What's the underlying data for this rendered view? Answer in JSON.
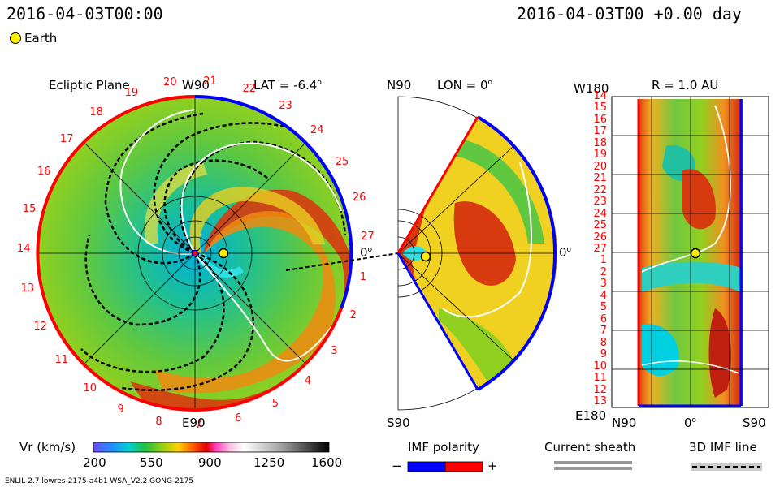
{
  "header": {
    "left_time": "2016-04-03T00:00",
    "right_time": "2016-04-03T00 +0.00 day"
  },
  "legend": {
    "earth_label": "Earth"
  },
  "panels": {
    "ecliptic": {
      "title": "Ecliptic Plane",
      "lat_label": "LAT = -6.4",
      "lat_sup": "o",
      "top_axis": "W90",
      "bottom_axis": "E90",
      "right_axis": "0",
      "right_sup": "o",
      "carrington_ticks": [
        "19",
        "20",
        "21",
        "22",
        "23",
        "24",
        "25",
        "26",
        "27",
        "1",
        "2",
        "3",
        "4",
        "5",
        "6",
        "7",
        "8",
        "9",
        "10",
        "11",
        "12",
        "13",
        "14",
        "15",
        "16",
        "17",
        "18"
      ]
    },
    "meridional": {
      "top_axis": "N90",
      "lon_label": "LON = 0",
      "lon_sup": "o",
      "bottom_axis": "S90",
      "right_axis": "0",
      "right_sup": "o"
    },
    "sphere": {
      "top_left": "W180",
      "r_label": "R = 1.0 AU",
      "left_ticks": [
        "14",
        "15",
        "16",
        "17",
        "18",
        "19",
        "20",
        "21",
        "22",
        "23",
        "24",
        "25",
        "26",
        "27",
        "1",
        "2",
        "3",
        "4",
        "5",
        "6",
        "7",
        "8",
        "9",
        "10",
        "11",
        "12",
        "13"
      ],
      "bottom_left": "E180",
      "bottom_axis_left": "N90",
      "bottom_axis_mid": "0",
      "bottom_axis_mid_sup": "o",
      "bottom_axis_right": "S90"
    }
  },
  "footer": {
    "vr_title": "Vr (km/s)",
    "vr_ticks": [
      "200",
      "550",
      "900",
      "1250",
      "1600"
    ],
    "imf_title": "IMF polarity",
    "imf_minus": "−",
    "imf_plus": "+",
    "sheath_title": "Current sheath",
    "imf3d_title": "3D IMF line",
    "model_info": "ENLIL-2.7 lowres-2175-a4b1 WSA_V2.2 GONG-2175"
  },
  "chart_data": {
    "type": "heatmap",
    "colorbar": {
      "quantity": "Vr (km/s)",
      "min": 200,
      "max": 1600,
      "ticks": [
        200,
        550,
        900,
        1250,
        1600
      ]
    },
    "time": "2016-04-03T00:00",
    "elapsed_days": 0.0,
    "ecliptic_latitude_deg": -6.4,
    "meridional_longitude_deg": 0,
    "sphere_radius_au": 1.0,
    "colors": {
      "positive_polarity": "#ff0000",
      "negative_polarity": "#0000ff",
      "earth": "#ffee00"
    }
  }
}
